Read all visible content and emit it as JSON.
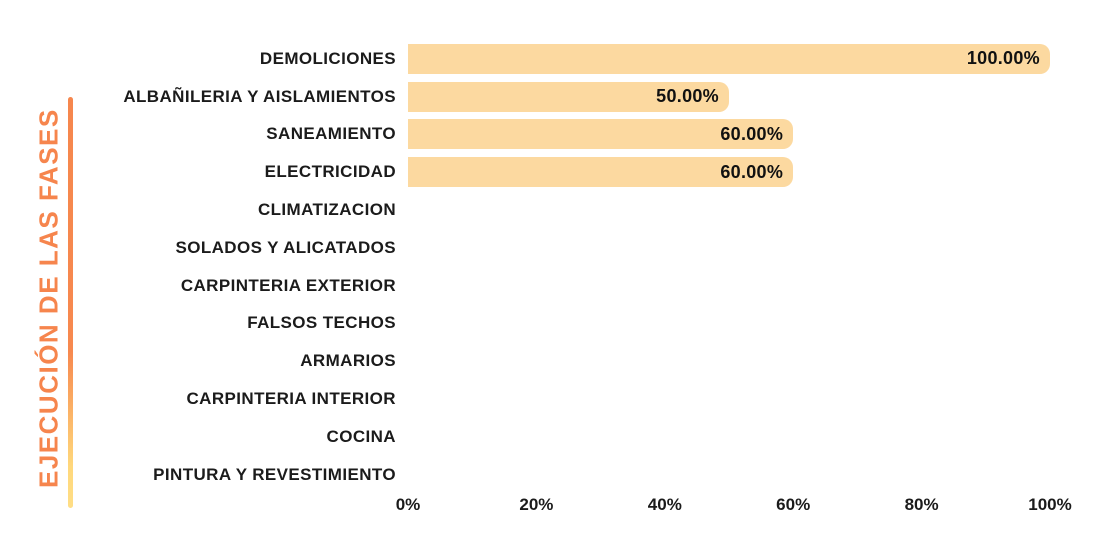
{
  "page": {
    "background": "#ffffff"
  },
  "sidebar_title": {
    "text": "EJECUCIÓN DE LAS FASES",
    "color": "#F6854D",
    "rule_gradient_top": "#F6874E",
    "rule_gradient_bottom": "#FFDE86"
  },
  "chart_data": {
    "type": "bar",
    "orientation": "horizontal",
    "title": "EJECUCIÓN DE LAS FASES",
    "categories": [
      "DEMOLICIONES",
      "ALBAÑILERIA Y AISLAMIENTOS",
      "SANEAMIENTO",
      "ELECTRICIDAD",
      "CLIMATIZACION",
      "SOLADOS Y ALICATADOS",
      "CARPINTERIA EXTERIOR",
      "FALSOS TECHOS",
      "ARMARIOS",
      "CARPINTERIA INTERIOR",
      "COCINA",
      "PINTURA Y REVESTIMIENTO"
    ],
    "values": [
      100,
      50,
      60,
      60,
      0,
      0,
      0,
      0,
      0,
      0,
      0,
      0
    ],
    "value_labels": [
      "100.00%",
      "50.00%",
      "60.00%",
      "60.00%",
      "",
      "",
      "",
      "",
      "",
      "",
      "",
      ""
    ],
    "x_ticks": [
      "0%",
      "20%",
      "40%",
      "60%",
      "80%",
      "100%"
    ],
    "xlim": [
      0,
      100
    ],
    "grid": false,
    "legend": "none",
    "bar_color": "#FCD9A0",
    "label_color": "#1b1b1b",
    "value_label_color": "#111111"
  }
}
